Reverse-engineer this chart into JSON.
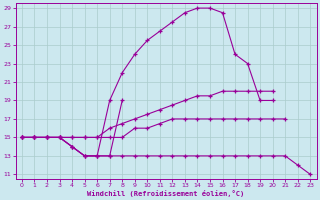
{
  "xlabel": "Windchill (Refroidissement éolien,°C)",
  "bg_color": "#cce8ef",
  "line_color": "#990099",
  "grid_color": "#aacccc",
  "xlim": [
    -0.5,
    23.5
  ],
  "ylim": [
    10.5,
    29.5
  ],
  "xticks": [
    0,
    1,
    2,
    3,
    4,
    5,
    6,
    7,
    8,
    9,
    10,
    11,
    12,
    13,
    14,
    15,
    16,
    17,
    18,
    19,
    20,
    21,
    22,
    23
  ],
  "yticks": [
    11,
    13,
    15,
    17,
    19,
    21,
    23,
    25,
    27,
    29
  ],
  "line1_x": [
    0,
    1,
    2,
    3,
    4,
    5,
    6,
    7,
    8,
    9,
    10,
    11,
    12,
    13,
    14,
    15,
    16,
    17,
    18,
    19,
    20
  ],
  "line1_y": [
    15,
    15,
    15,
    15,
    14,
    13,
    13,
    19,
    22,
    24,
    25.5,
    26.5,
    27.5,
    28.5,
    29,
    29,
    28.5,
    24,
    23,
    19,
    19
  ],
  "line2_x": [
    0,
    1,
    2,
    3,
    4,
    5,
    6,
    7,
    8,
    9,
    10,
    11,
    12,
    13,
    14,
    15,
    16,
    17,
    18,
    19,
    20
  ],
  "line2_y": [
    15,
    15,
    15,
    15,
    15,
    15,
    15,
    16,
    16.5,
    17,
    17.5,
    18,
    18.5,
    19,
    19.5,
    19.5,
    20,
    20,
    20,
    20,
    20
  ],
  "line3_x": [
    0,
    1,
    2,
    3,
    4,
    5,
    6,
    7,
    8,
    9,
    10,
    11,
    12,
    13,
    14,
    15,
    16,
    17,
    18,
    19,
    20,
    21
  ],
  "line3_y": [
    15,
    15,
    15,
    15,
    15,
    15,
    15,
    15,
    15,
    16,
    16,
    16.5,
    17,
    17,
    17,
    17,
    17,
    17,
    17,
    17,
    17,
    17
  ],
  "line4_x": [
    0,
    1,
    2,
    3,
    4,
    5,
    6,
    7,
    8
  ],
  "line4_y": [
    15,
    15,
    15,
    15,
    14,
    13,
    13,
    13,
    19
  ],
  "line5_x": [
    0,
    1,
    2,
    3,
    4,
    5,
    6,
    7,
    8,
    9,
    10,
    11,
    12,
    13,
    14,
    15,
    16,
    17,
    18,
    19,
    20,
    21,
    22,
    23
  ],
  "line5_y": [
    15,
    15,
    15,
    15,
    14,
    13,
    13,
    13,
    13,
    13,
    13,
    13,
    13,
    13,
    13,
    13,
    13,
    13,
    13,
    13,
    13,
    13,
    12,
    11
  ]
}
